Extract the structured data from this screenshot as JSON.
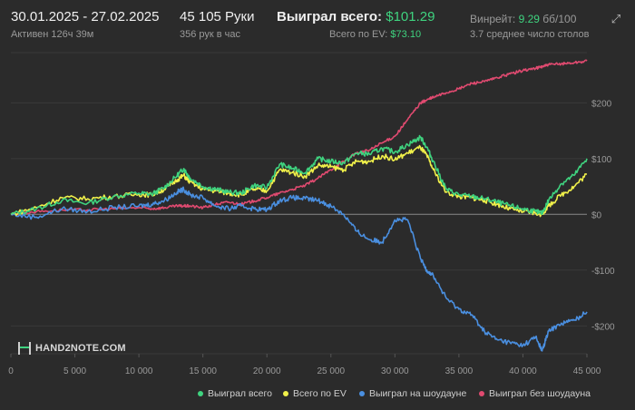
{
  "header": {
    "date_range": "30.01.2025 - 27.02.2025",
    "active": "Активен 126ч 39м",
    "hands": "45 105 Руки",
    "hands_per_hour": "356 рук в час",
    "won_total_label": "Выиграл всего:",
    "won_total_value": "$101.29",
    "ev_total_label": "Всего по EV:",
    "ev_total_value": "$73.10",
    "winrate_label": "Винрейт:",
    "winrate_value": "9.29",
    "winrate_unit": "бб/100",
    "tables": "3.7 среднее число столов",
    "expand_icon": "expand-icon"
  },
  "logo": {
    "text": "HAND2NOTE.COM"
  },
  "colors": {
    "won": "#3fd37f",
    "ev": "#f0f04a",
    "showdown": "#4a8fe0",
    "nonshowdown": "#e04a70",
    "grid": "#3a3a3a",
    "zero": "#8a8a8a"
  },
  "chart_data": {
    "type": "line",
    "xlim": [
      0,
      45000
    ],
    "ylim": [
      -250,
      290
    ],
    "x_ticks": [
      0,
      5000,
      10000,
      15000,
      20000,
      25000,
      30000,
      35000,
      40000,
      45000
    ],
    "x_tick_labels": [
      "0",
      "5 000",
      "10 000",
      "15 000",
      "20 000",
      "25 000",
      "30 000",
      "35 000",
      "40 000",
      "45 000"
    ],
    "y_ticks": [
      200,
      100,
      0,
      -100,
      -200
    ],
    "y_tick_labels": [
      "$200",
      "$100",
      "$0",
      "-$100",
      "-$200"
    ],
    "grid": "horizontal",
    "legend_position": "bottom-right",
    "x": [
      0,
      2000,
      4000,
      6000,
      8000,
      10000,
      11000,
      12000,
      13000,
      13500,
      14000,
      15000,
      16000,
      17000,
      18000,
      19000,
      20000,
      21000,
      22000,
      23000,
      24000,
      25000,
      26000,
      27000,
      28000,
      29000,
      30000,
      31000,
      32000,
      32500,
      33000,
      34000,
      35000,
      36000,
      37000,
      38000,
      39000,
      40000,
      41000,
      41500,
      42000,
      43000,
      44000,
      45000
    ],
    "series": [
      {
        "name": "Выиграл всего",
        "color_key": "won",
        "values": [
          0,
          10,
          25,
          20,
          32,
          38,
          36,
          48,
          70,
          82,
          65,
          50,
          45,
          40,
          38,
          52,
          48,
          90,
          82,
          75,
          100,
          95,
          92,
          110,
          108,
          118,
          112,
          125,
          138,
          120,
          95,
          45,
          35,
          32,
          28,
          22,
          15,
          10,
          5,
          2,
          25,
          55,
          70,
          100
        ]
      },
      {
        "name": "Всего по EV",
        "color_key": "ev",
        "values": [
          0,
          12,
          30,
          28,
          32,
          36,
          35,
          45,
          62,
          70,
          58,
          45,
          42,
          38,
          35,
          45,
          42,
          80,
          75,
          68,
          88,
          85,
          80,
          95,
          95,
          105,
          98,
          110,
          120,
          105,
          80,
          40,
          32,
          30,
          25,
          18,
          10,
          5,
          2,
          0,
          15,
          35,
          50,
          72
        ]
      },
      {
        "name": "Выиграл на шоудауне",
        "color_key": "showdown",
        "values": [
          0,
          -5,
          10,
          5,
          12,
          15,
          18,
          25,
          40,
          45,
          35,
          30,
          15,
          10,
          15,
          10,
          8,
          25,
          30,
          28,
          25,
          15,
          0,
          -30,
          -45,
          -50,
          -10,
          -10,
          -80,
          -100,
          -110,
          -150,
          -170,
          -180,
          -210,
          -225,
          -230,
          -235,
          -220,
          -245,
          -210,
          -195,
          -190,
          -175
        ]
      },
      {
        "name": "Выиграл без шоудауна",
        "color_key": "nonshowdown",
        "values": [
          0,
          5,
          8,
          8,
          10,
          12,
          10,
          12,
          15,
          15,
          15,
          12,
          18,
          22,
          18,
          24,
          30,
          38,
          45,
          52,
          65,
          80,
          95,
          110,
          115,
          128,
          140,
          170,
          200,
          205,
          210,
          218,
          225,
          235,
          238,
          245,
          252,
          258,
          262,
          265,
          268,
          270,
          272,
          275
        ]
      }
    ]
  }
}
